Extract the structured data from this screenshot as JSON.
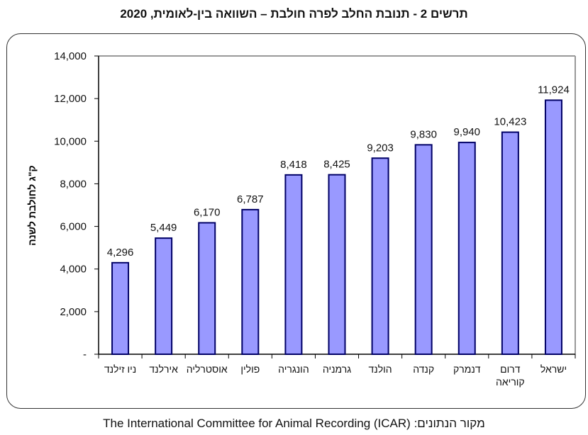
{
  "title": "תרשים 2 - תנובת החלב לפרה חולבת – השוואה בין-לאומית, 2020",
  "source": "מקור הנתונים: The International Committee for Animal Recording (ICAR)",
  "colors": {
    "bar_fill": "#9999FF",
    "bar_stroke": "#000066",
    "plot_border": "#999999",
    "axis": "#000000"
  },
  "chart_data": {
    "type": "bar",
    "title": "תרשים 2 - תנובת החלב לפרה חולבת – השוואה בין-לאומית, 2020",
    "xlabel": "",
    "ylabel": "ק\"ג לחולבת לשנה",
    "ylim": [
      0,
      14000
    ],
    "yticks": [
      0,
      2000,
      4000,
      6000,
      8000,
      10000,
      12000,
      14000
    ],
    "ytick_labels": [
      "-",
      "2,000",
      "4,000",
      "6,000",
      "8,000",
      "10,000",
      "12,000",
      "14,000"
    ],
    "grid": false,
    "categories": [
      [
        "ניו זילנד"
      ],
      [
        "אירלנד"
      ],
      [
        "אוסטרליה"
      ],
      [
        "פולין"
      ],
      [
        "הונגריה"
      ],
      [
        "גרמניה"
      ],
      [
        "הולנד"
      ],
      [
        "קנדה"
      ],
      [
        "דנמרק"
      ],
      [
        "דרום",
        "קוריאה"
      ],
      [
        "ישראל"
      ]
    ],
    "values": [
      4296,
      5449,
      6170,
      6787,
      8418,
      8425,
      9203,
      9830,
      9940,
      10423,
      11924
    ],
    "value_labels": [
      "4,296",
      "5,449",
      "6,170",
      "6,787",
      "8,418",
      "8,425",
      "9,203",
      "9,830",
      "9,940",
      "10,423",
      "11,924"
    ]
  }
}
